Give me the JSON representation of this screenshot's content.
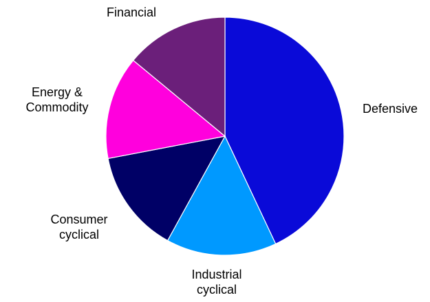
{
  "chart_data": {
    "type": "pie",
    "categories": [
      "Defensive",
      "Industrial\ncyclical",
      "Consumer\ncyclical",
      "Energy &\nCommodity",
      "Financial"
    ],
    "values": [
      43,
      15,
      14,
      14,
      14
    ],
    "colors": [
      "#0a0ad8",
      "#0099ff",
      "#000066",
      "#ff00dd",
      "#6b1f7a"
    ]
  }
}
